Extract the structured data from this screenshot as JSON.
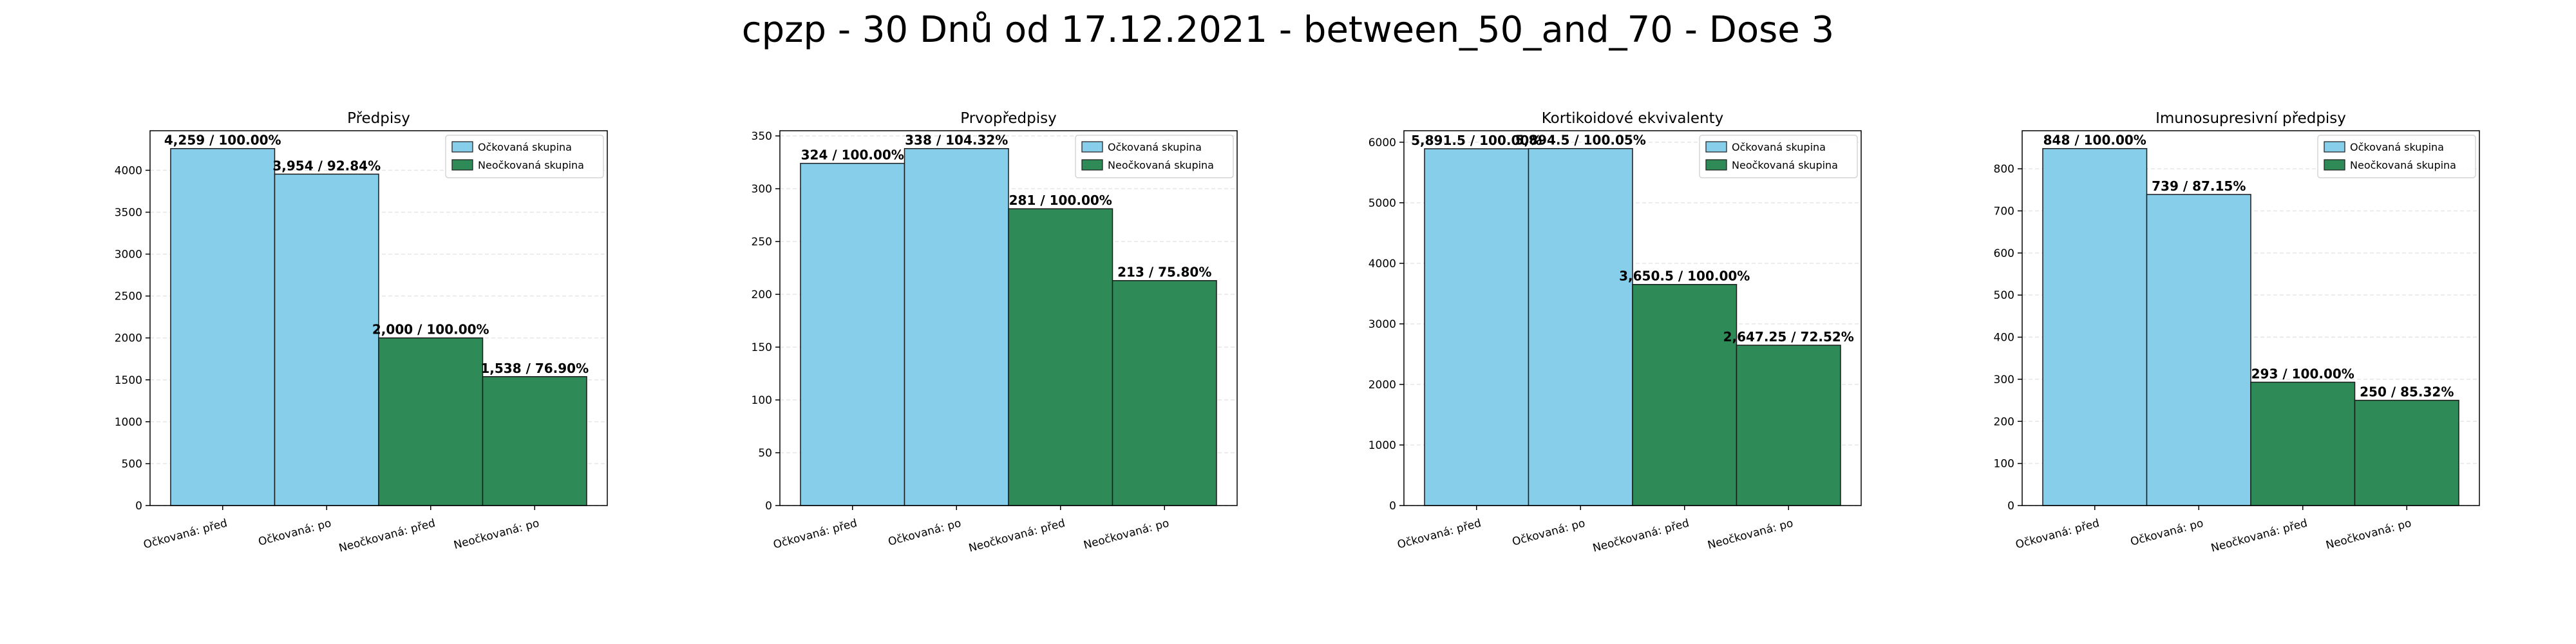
{
  "figure_title": "cpzp - 30 Dnů od 17.12.2021 - between_50_and_70 - Dose 3",
  "colors": {
    "vaccinated": "#87ceeb",
    "unvaccinated": "#2e8b57"
  },
  "chart_data": [
    {
      "type": "bar",
      "title": "Předpisy",
      "categories": [
        "Očkovaná: před",
        "Očkovaná: po",
        "Neočkovaná: před",
        "Neočkovaná: po"
      ],
      "values": [
        4259,
        3954,
        2000,
        1538
      ],
      "data_labels": [
        "4,259 / 100.00%",
        "3,954 / 92.84%",
        "2,000 / 100.00%",
        "1,538 / 76.90%"
      ],
      "groups": [
        "vaccinated",
        "vaccinated",
        "unvaccinated",
        "unvaccinated"
      ],
      "ylim": [
        0,
        4471.95
      ],
      "yticks": [
        0,
        500,
        1000,
        1500,
        2000,
        2500,
        3000,
        3500,
        4000
      ],
      "legend": [
        "Očkovaná skupina",
        "Neočkovaná skupina"
      ],
      "legend_position": "top-right",
      "grid": "y"
    },
    {
      "type": "bar",
      "title": "Prvopředpisy",
      "categories": [
        "Očkovaná: před",
        "Očkovaná: po",
        "Neočkovaná: před",
        "Neočkovaná: po"
      ],
      "values": [
        324,
        338,
        281,
        213
      ],
      "data_labels": [
        "324 / 100.00%",
        "338 / 104.32%",
        "281 / 100.00%",
        "213 / 75.80%"
      ],
      "groups": [
        "vaccinated",
        "vaccinated",
        "unvaccinated",
        "unvaccinated"
      ],
      "ylim": [
        0,
        354.9
      ],
      "yticks": [
        0,
        50,
        100,
        150,
        200,
        250,
        300,
        350
      ],
      "legend": [
        "Očkovaná skupina",
        "Neočkovaná skupina"
      ],
      "legend_position": "top-right",
      "grid": "y"
    },
    {
      "type": "bar",
      "title": "Kortikoidové ekvivalenty",
      "categories": [
        "Očkovaná: před",
        "Očkovaná: po",
        "Neočkovaná: před",
        "Neočkovaná: po"
      ],
      "values": [
        5891.5,
        5894.5,
        3650.5,
        2647.25
      ],
      "data_labels": [
        "5,891.5 / 100.00%",
        "5,894.5 / 100.05%",
        "3,650.5 / 100.00%",
        "2,647.25 / 72.52%"
      ],
      "groups": [
        "vaccinated",
        "vaccinated",
        "unvaccinated",
        "unvaccinated"
      ],
      "ylim": [
        0,
        6189.2
      ],
      "yticks": [
        0,
        1000,
        2000,
        3000,
        4000,
        5000,
        6000
      ],
      "legend": [
        "Očkovaná skupina",
        "Neočkovaná skupina"
      ],
      "legend_position": "top-right",
      "grid": "y"
    },
    {
      "type": "bar",
      "title": "Imunosupresivní předpisy",
      "categories": [
        "Očkovaná: před",
        "Očkovaná: po",
        "Neočkovaná: před",
        "Neočkovaná: po"
      ],
      "values": [
        848,
        739,
        293,
        250
      ],
      "data_labels": [
        "848 / 100.00%",
        "739 / 87.15%",
        "293 / 100.00%",
        "250 / 85.32%"
      ],
      "groups": [
        "vaccinated",
        "vaccinated",
        "unvaccinated",
        "unvaccinated"
      ],
      "ylim": [
        0,
        890.4
      ],
      "yticks": [
        0,
        100,
        200,
        300,
        400,
        500,
        600,
        700,
        800
      ],
      "legend": [
        "Očkovaná skupina",
        "Neočkovaná skupina"
      ],
      "legend_position": "top-right",
      "grid": "y"
    }
  ]
}
